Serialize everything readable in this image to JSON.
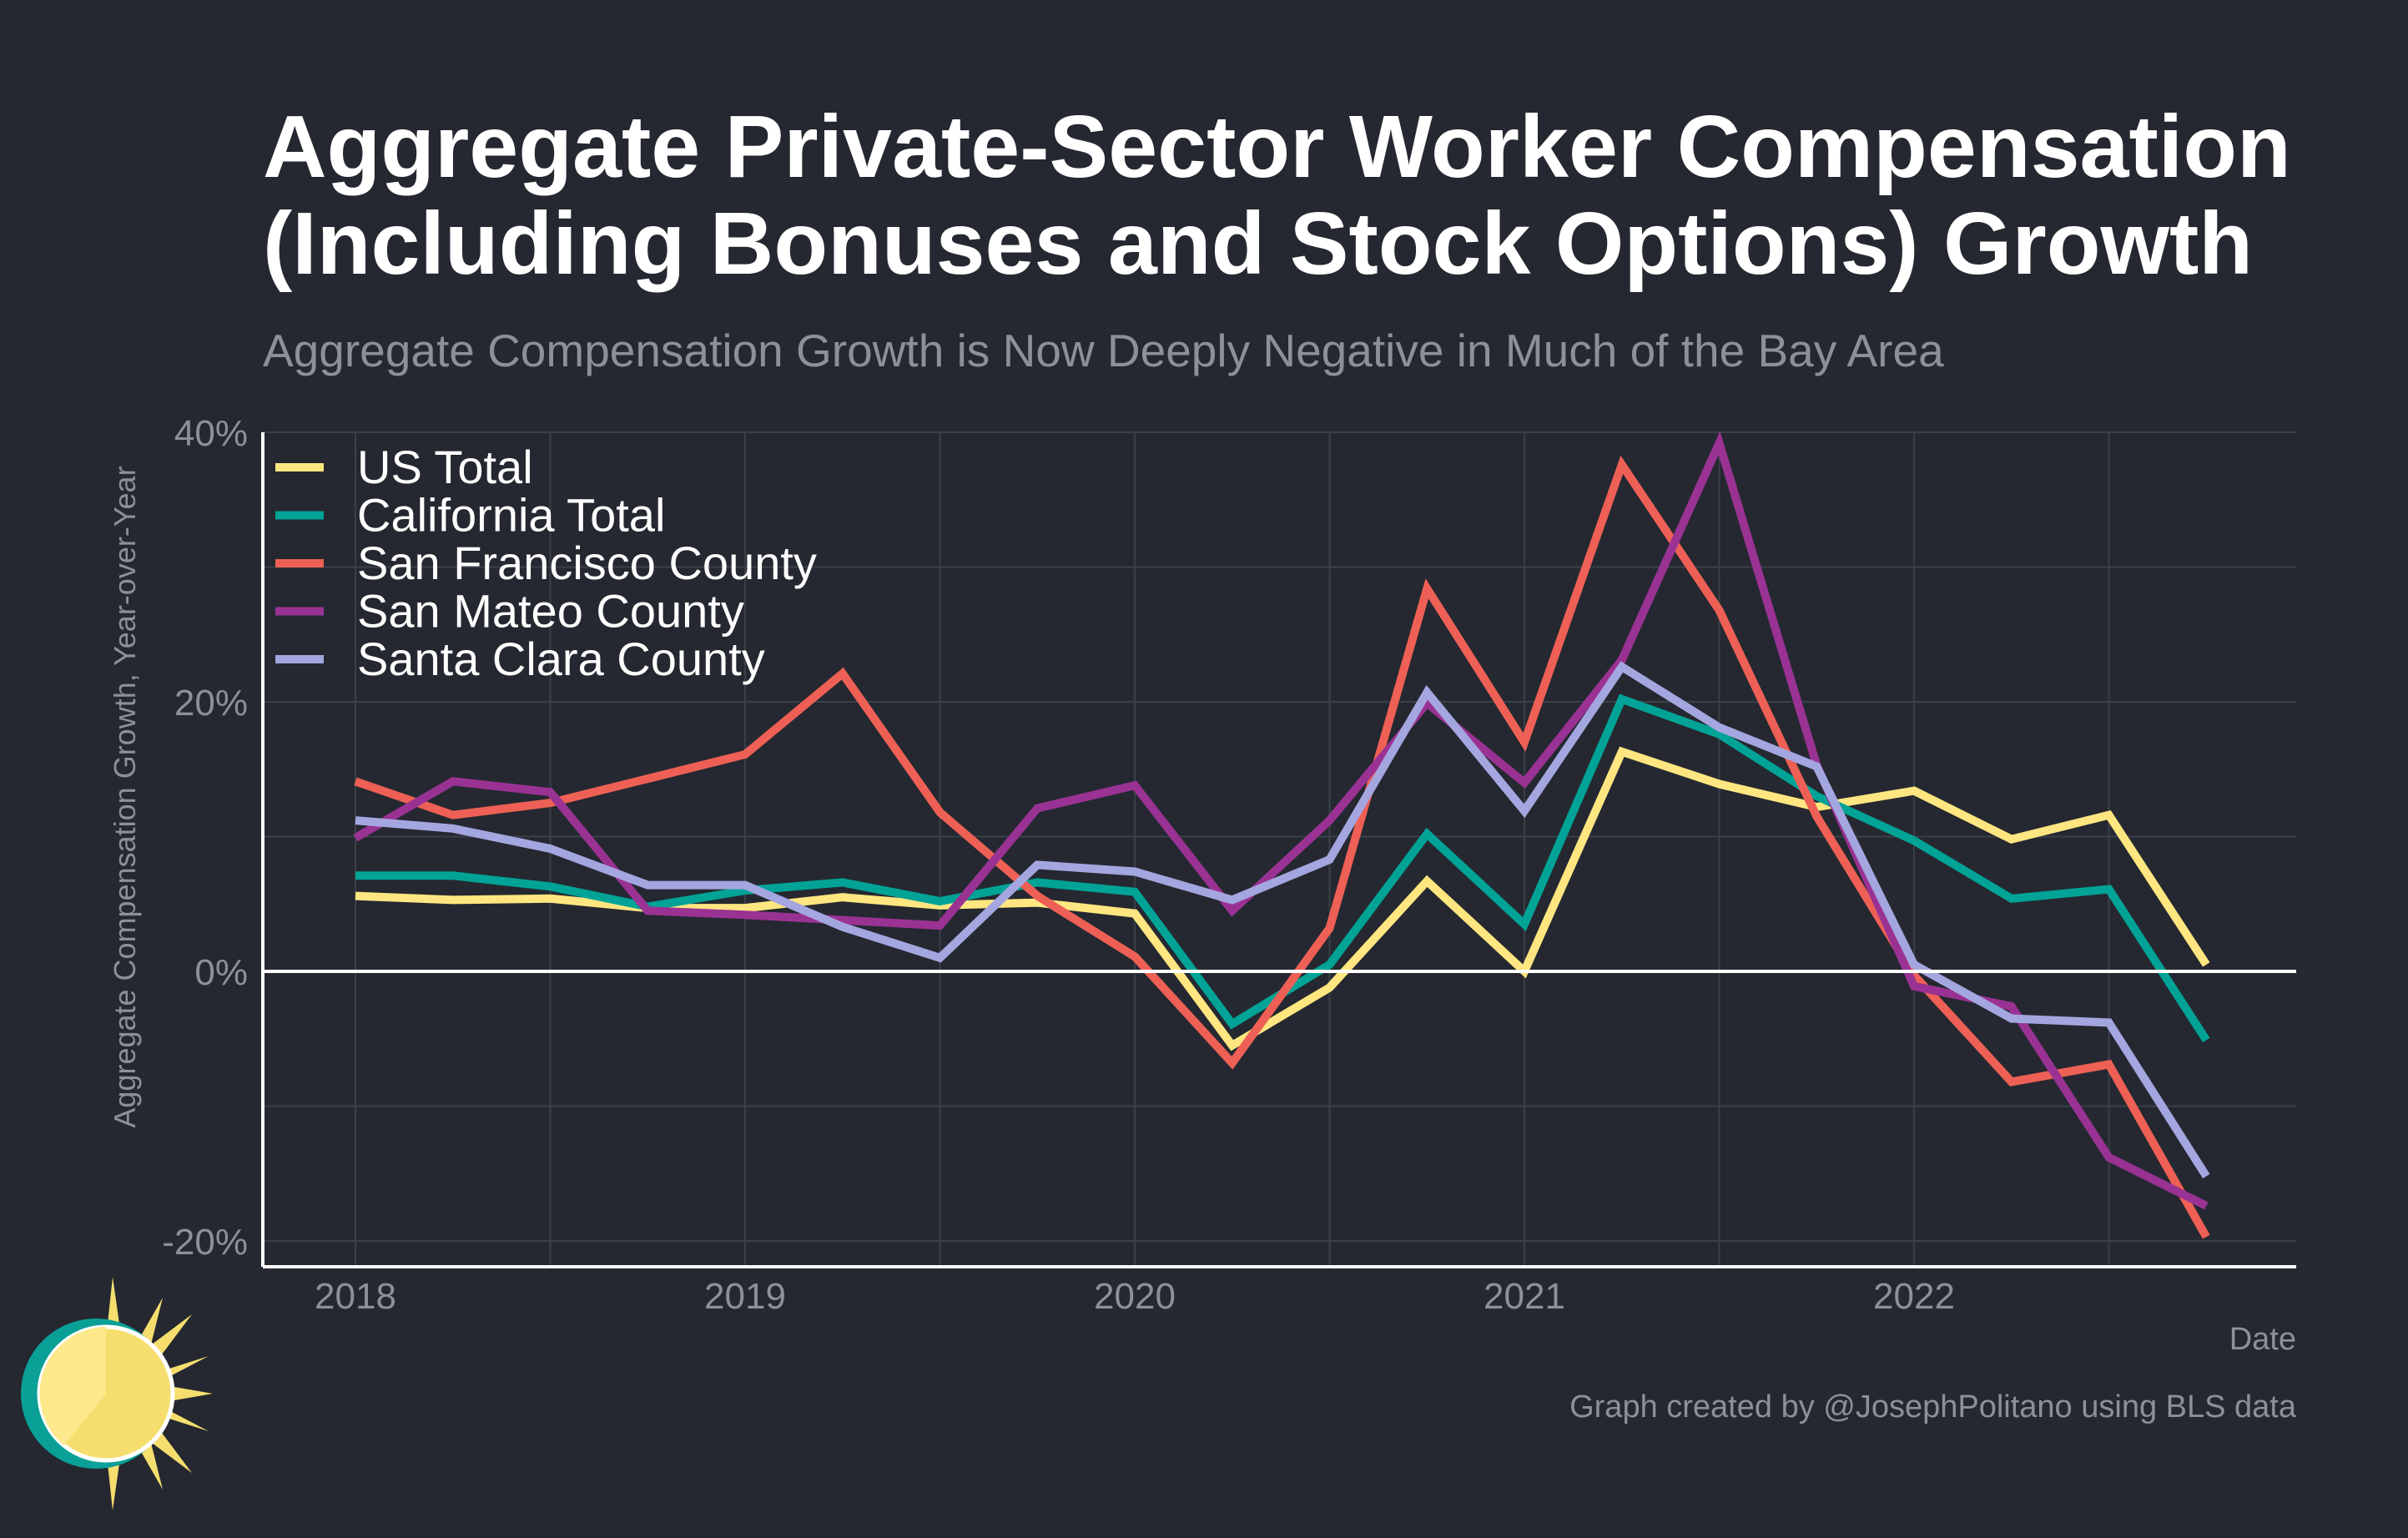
{
  "title_lines": [
    "Aggregate Private-Sector Worker Compensation",
    "(Including Bonuses and Stock Options) Growth"
  ],
  "subtitle": "Aggregate Compensation Growth is Now Deeply Negative in Much of the Bay Area",
  "credit": "Graph created by @JosephPolitano using BLS data",
  "logo_icon": "sun-logo-icon",
  "colors": {
    "background": "#252830",
    "grid": "#3b3f48",
    "axis": "#ffffff",
    "text_muted": "#8d9099",
    "sun": "#f5de6e",
    "sun_ring": "#0aa097"
  },
  "chart_data": {
    "type": "line",
    "xlabel": "Date",
    "ylabel": "Aggregate Compensation Growth, Year-over-Year",
    "x": [
      "2018-01",
      "2018-04",
      "2018-07",
      "2018-10",
      "2019-01",
      "2019-04",
      "2019-07",
      "2019-10",
      "2020-01",
      "2020-04",
      "2020-07",
      "2020-10",
      "2021-01",
      "2021-04",
      "2021-07",
      "2021-10",
      "2022-01",
      "2022-04",
      "2022-07",
      "2022-10"
    ],
    "x_ticks": [
      "2018",
      "2019",
      "2020",
      "2021",
      "2022"
    ],
    "y_ticks": [
      "40%",
      "20%",
      "0%",
      "-20%"
    ],
    "y_tick_values": [
      40,
      20,
      0,
      -20
    ],
    "ylim": [
      -22,
      40
    ],
    "grid": true,
    "legend_position": "top-left",
    "series": [
      {
        "name": "US Total",
        "color": "#ffe680",
        "values": [
          5.6,
          5.3,
          5.4,
          4.7,
          4.7,
          5.5,
          4.9,
          5.1,
          4.3,
          -5.5,
          -1.2,
          6.7,
          0.0,
          16.3,
          13.9,
          12.2,
          13.4,
          9.8,
          11.6,
          0.5
        ]
      },
      {
        "name": "California Total",
        "color": "#00a396",
        "values": [
          7.1,
          7.1,
          6.3,
          4.8,
          6.0,
          6.6,
          5.2,
          6.6,
          5.9,
          -3.9,
          0.5,
          10.2,
          3.5,
          20.2,
          17.6,
          13.0,
          9.7,
          5.4,
          6.1,
          -5.1
        ]
      },
      {
        "name": "San Francisco County",
        "color": "#ee6055",
        "values": [
          14.1,
          11.6,
          12.5,
          14.3,
          16.1,
          22.1,
          11.8,
          5.6,
          1.1,
          -6.8,
          3.2,
          28.4,
          17.0,
          37.6,
          26.8,
          11.5,
          -0.3,
          -8.2,
          -6.9,
          -19.7
        ]
      },
      {
        "name": "San Mateo County",
        "color": "#9a3294",
        "values": [
          9.9,
          14.1,
          13.3,
          4.5,
          4.2,
          3.8,
          3.4,
          12.1,
          13.8,
          4.5,
          11.2,
          19.9,
          14.0,
          23.1,
          39.2,
          15.3,
          -1.1,
          -2.6,
          -13.8,
          -17.4
        ]
      },
      {
        "name": "Santa Clara County",
        "color": "#a4a6e0",
        "values": [
          11.2,
          10.6,
          9.1,
          6.4,
          6.4,
          3.3,
          1.0,
          7.9,
          7.4,
          5.3,
          8.3,
          20.7,
          11.9,
          22.6,
          18.1,
          15.2,
          0.5,
          -3.5,
          -3.8,
          -15.2
        ]
      }
    ]
  }
}
